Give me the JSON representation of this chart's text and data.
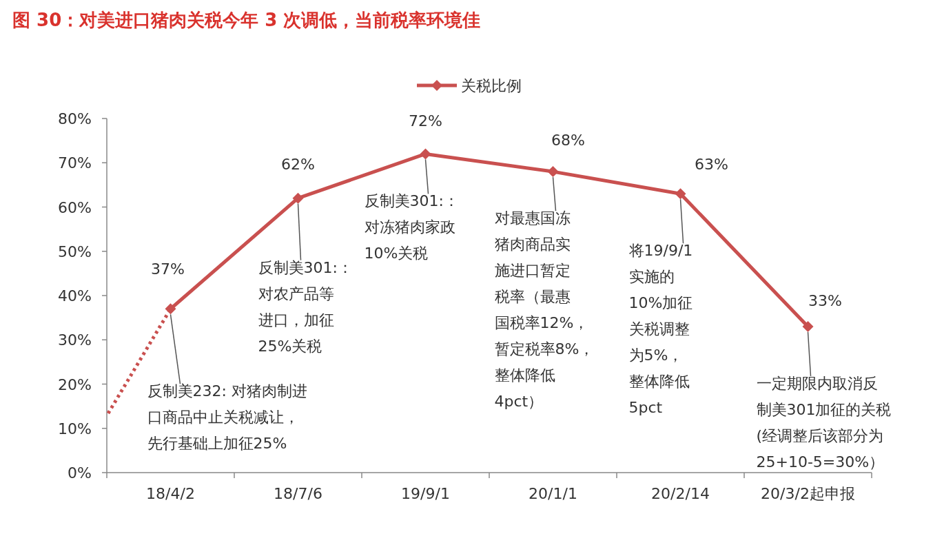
{
  "chart_data": {
    "type": "line",
    "title": "图 30：对美进口猪肉关税今年 3 次调低，当前税率环境佳",
    "categories": [
      "18/4/2",
      "18/7/6",
      "19/9/1",
      "20/1/1",
      "20/2/14",
      "20/3/2起申报"
    ],
    "series": [
      {
        "name": "关税比例",
        "color": "#c9504f",
        "values": [
          37,
          62,
          72,
          68,
          63,
          33
        ],
        "value_labels": [
          "37%",
          "62%",
          "72%",
          "68%",
          "63%",
          "33%"
        ],
        "marker": "diamond",
        "line_style": "solid"
      }
    ],
    "ylim": [
      0,
      80
    ],
    "yticks": [
      {
        "value": 0,
        "label": "0%"
      },
      {
        "value": 10,
        "label": "10%"
      },
      {
        "value": 20,
        "label": "20%"
      },
      {
        "value": 30,
        "label": "30%"
      },
      {
        "value": 40,
        "label": "40%"
      },
      {
        "value": 50,
        "label": "50%"
      },
      {
        "value": 60,
        "label": "60%"
      },
      {
        "value": 70,
        "label": "70%"
      },
      {
        "value": 80,
        "label": "80%"
      }
    ],
    "legend": "top",
    "grid": false,
    "annotations": [
      {
        "text": "反制美232: 对猪肉制进口商品中止关税减让，先行基础上加征25%",
        "x": "18/4/2",
        "y": 37
      },
      {
        "text": "反制美301:：对农产品等进口，加征25%关税",
        "x": "18/7/6",
        "y": 62
      },
      {
        "text": "反制美301:：对冻猪肉家政10%关税",
        "x": "19/9/1",
        "y": 72
      },
      {
        "text": "对最惠国冻猪肉商品实施进口暂定税率（最惠国税率12%，暂定税率8%，整体降低4pct）",
        "x": "20/1/1",
        "y": 68
      },
      {
        "text": "将19/9/1实施的10%加征关税调整为5%，整体降低5pct",
        "x": "20/2/14",
        "y": 63
      },
      {
        "text": "一定期限内取消反制美301加征的关税(经调整后该部分为25+10-5=30%）",
        "x": "20/3/2起申报",
        "y": 33
      }
    ]
  }
}
